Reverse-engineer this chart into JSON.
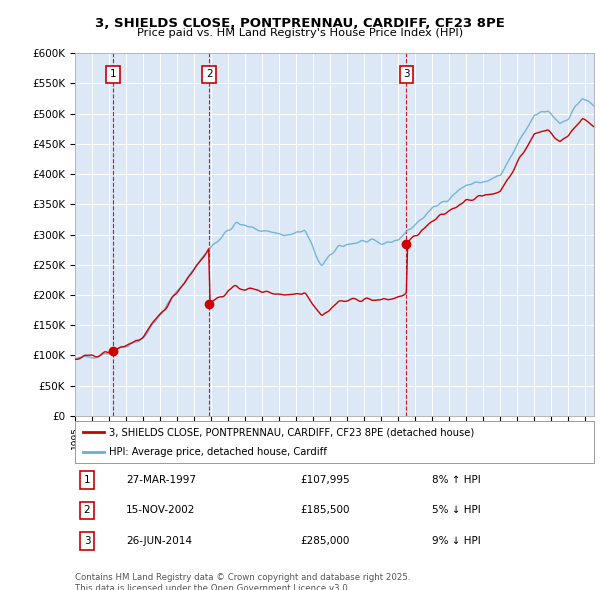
{
  "title": "3, SHIELDS CLOSE, PONTPRENNAU, CARDIFF, CF23 8PE",
  "subtitle": "Price paid vs. HM Land Registry's House Price Index (HPI)",
  "ylim": [
    0,
    600000
  ],
  "yticks": [
    0,
    50000,
    100000,
    150000,
    200000,
    250000,
    300000,
    350000,
    400000,
    450000,
    500000,
    550000,
    600000
  ],
  "ytick_labels": [
    "£0",
    "£50K",
    "£100K",
    "£150K",
    "£200K",
    "£250K",
    "£300K",
    "£350K",
    "£400K",
    "£450K",
    "£500K",
    "£550K",
    "£600K"
  ],
  "xlim_start": 1995.0,
  "xlim_end": 2025.5,
  "sale_color": "#cc0000",
  "hpi_color": "#6aaed6",
  "vline_color": "#cc0000",
  "chart_bg": "#dce8f5",
  "sale_points": [
    {
      "year": 1997.23,
      "price": 107995
    },
    {
      "year": 2002.88,
      "price": 185500
    },
    {
      "year": 2014.48,
      "price": 285000
    }
  ],
  "vline_years": [
    1997.23,
    2002.88,
    2014.48
  ],
  "annotations": [
    {
      "label": "1",
      "year": 1997.23
    },
    {
      "label": "2",
      "year": 2002.88
    },
    {
      "label": "3",
      "year": 2014.48
    }
  ],
  "table_rows": [
    {
      "num": "1",
      "date": "27-MAR-1997",
      "price": "£107,995",
      "hpi": "8% ↑ HPI"
    },
    {
      "num": "2",
      "date": "15-NOV-2002",
      "price": "£185,500",
      "hpi": "5% ↓ HPI"
    },
    {
      "num": "3",
      "date": "26-JUN-2014",
      "price": "£285,000",
      "hpi": "9% ↓ HPI"
    }
  ],
  "legend_sale": "3, SHIELDS CLOSE, PONTPRENNAU, CARDIFF, CF23 8PE (detached house)",
  "legend_hpi": "HPI: Average price, detached house, Cardiff",
  "footnote": "Contains HM Land Registry data © Crown copyright and database right 2025.\nThis data is licensed under the Open Government Licence v3.0.",
  "background_color": "#ffffff",
  "grid_color": "#ffffff"
}
